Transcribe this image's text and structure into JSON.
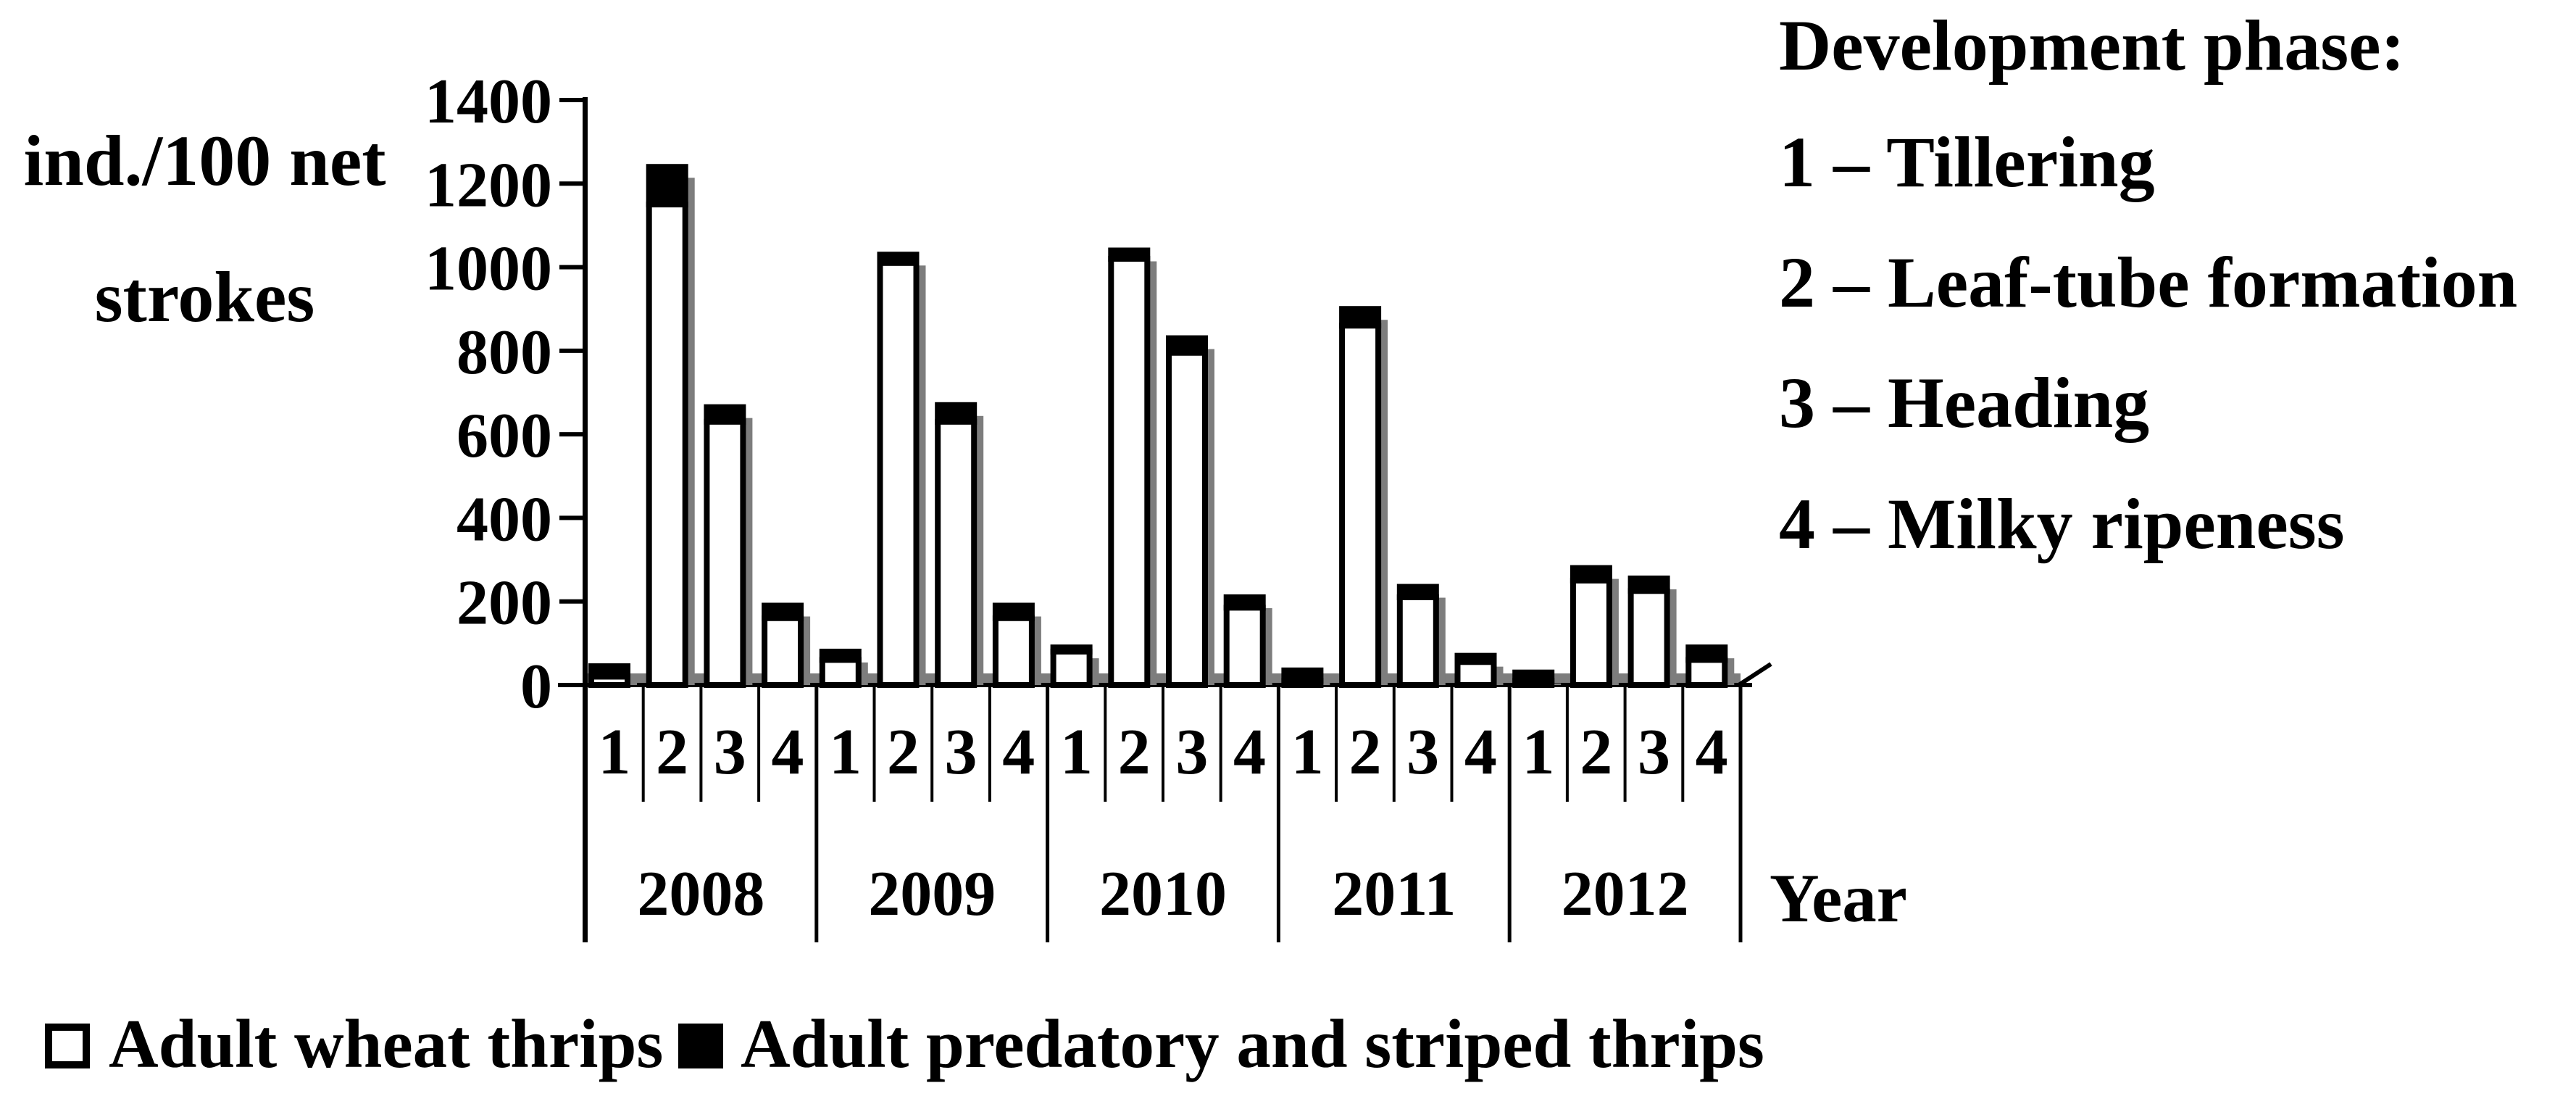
{
  "y_axis": {
    "title_line1": "ind./100 net",
    "title_line2": "strokes",
    "tick_labels": [
      "1400",
      "1200",
      "1000",
      "800",
      "600",
      "400",
      "200",
      "0"
    ]
  },
  "x_axis": {
    "title": "Year",
    "years": [
      "2008",
      "2009",
      "2010",
      "2011",
      "2012"
    ],
    "phases": [
      "1",
      "2",
      "3",
      "4"
    ]
  },
  "phase_legend": {
    "title": "Development phase:",
    "items": [
      "1 – Tillering",
      "2 – Leaf-tube formation",
      "3 – Heading",
      "4 – Milky ripeness"
    ]
  },
  "series_legend": {
    "wheat": "Adult wheat thrips",
    "predatory": "Adult predatory and striped thrips"
  },
  "colors": {
    "background": "#ffffff",
    "bar_fill": "#ffffff",
    "bar_stroke": "#000000",
    "black_series": "#000000",
    "shadow": "#7d7d7d",
    "text": "#000000"
  },
  "chart_data": {
    "type": "bar",
    "stacked": true,
    "title": "",
    "ylabel": "ind./100 net strokes",
    "xlabel": "Year",
    "ylim": [
      0,
      1400
    ],
    "yticks": [
      0,
      200,
      400,
      600,
      800,
      1000,
      1200,
      1400
    ],
    "grid": false,
    "legend_position": "bottom",
    "years": [
      "2008",
      "2009",
      "2010",
      "2011",
      "2012"
    ],
    "phases_per_year": [
      "1",
      "2",
      "3",
      "4"
    ],
    "series": [
      {
        "name": "Adult wheat thrips",
        "color": "#ffffff",
        "values": [
          20,
          1150,
          630,
          160,
          60,
          1010,
          630,
          160,
          80,
          1020,
          795,
          185,
          10,
          860,
          210,
          55,
          10,
          250,
          225,
          60
        ]
      },
      {
        "name": "Adult predatory and striped thrips",
        "color": "#000000",
        "values": [
          25,
          90,
          35,
          30,
          20,
          20,
          40,
          30,
          10,
          20,
          35,
          25,
          25,
          40,
          25,
          15,
          20,
          30,
          30,
          30
        ]
      }
    ]
  }
}
